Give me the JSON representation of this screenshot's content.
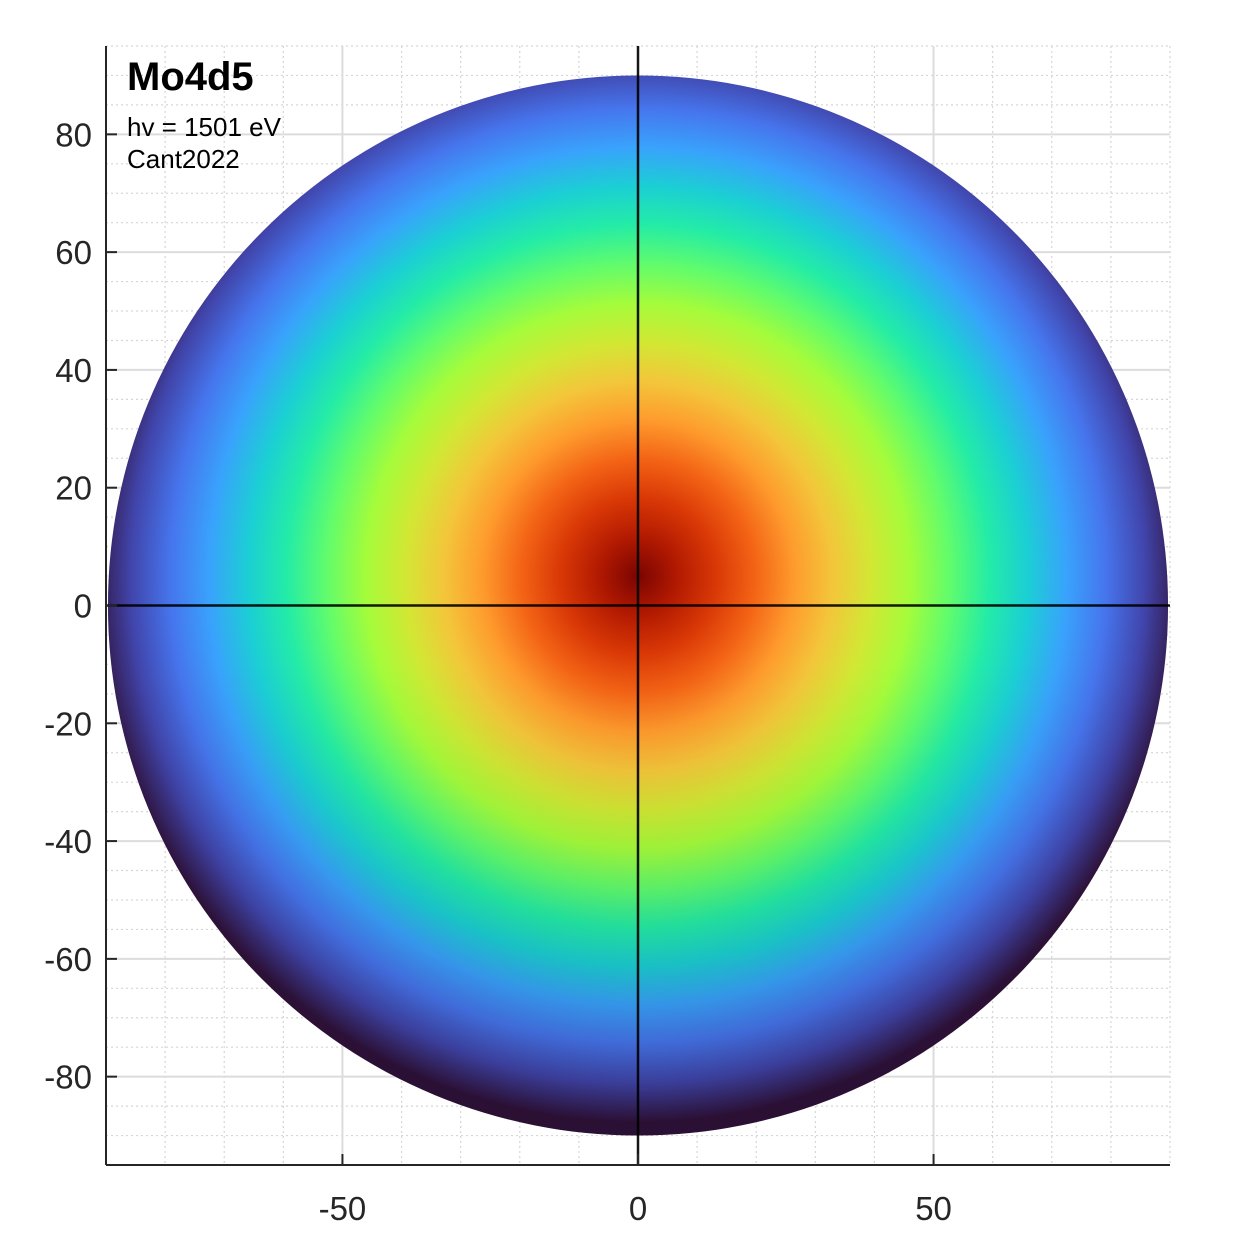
{
  "chart_data": {
    "type": "heatmap",
    "title": "Mo4d5",
    "annotations": [
      "hv = 1501 eV",
      "Cant2022"
    ],
    "xlim": [
      -90,
      90
    ],
    "ylim": [
      -95,
      95
    ],
    "x_ticks": [
      -50,
      0,
      50
    ],
    "y_ticks": [
      80,
      60,
      40,
      20,
      0,
      -20,
      -40,
      -60,
      -80
    ],
    "x_tick_labels": [
      "-50",
      "0",
      "50"
    ],
    "y_tick_labels": [
      "80",
      "60",
      "40",
      "20",
      "0",
      "-20",
      "-40",
      "-60",
      "-80"
    ],
    "grid": true,
    "minor_grid": true,
    "domain": {
      "shape": "disk",
      "radius": 90
    },
    "crosshair": {
      "x": 0,
      "y": 0
    },
    "peak": {
      "x": 0,
      "y": 5
    },
    "colormap": "turbo",
    "colormap_stops": [
      "#30123b",
      "#4145ab",
      "#4675ed",
      "#39a2fc",
      "#1bcfd4",
      "#24eca6",
      "#61fc6c",
      "#a4fc3b",
      "#d1e834",
      "#f3c63a",
      "#fe9b2d",
      "#f36315",
      "#d93806",
      "#b11901",
      "#7a0402"
    ]
  }
}
